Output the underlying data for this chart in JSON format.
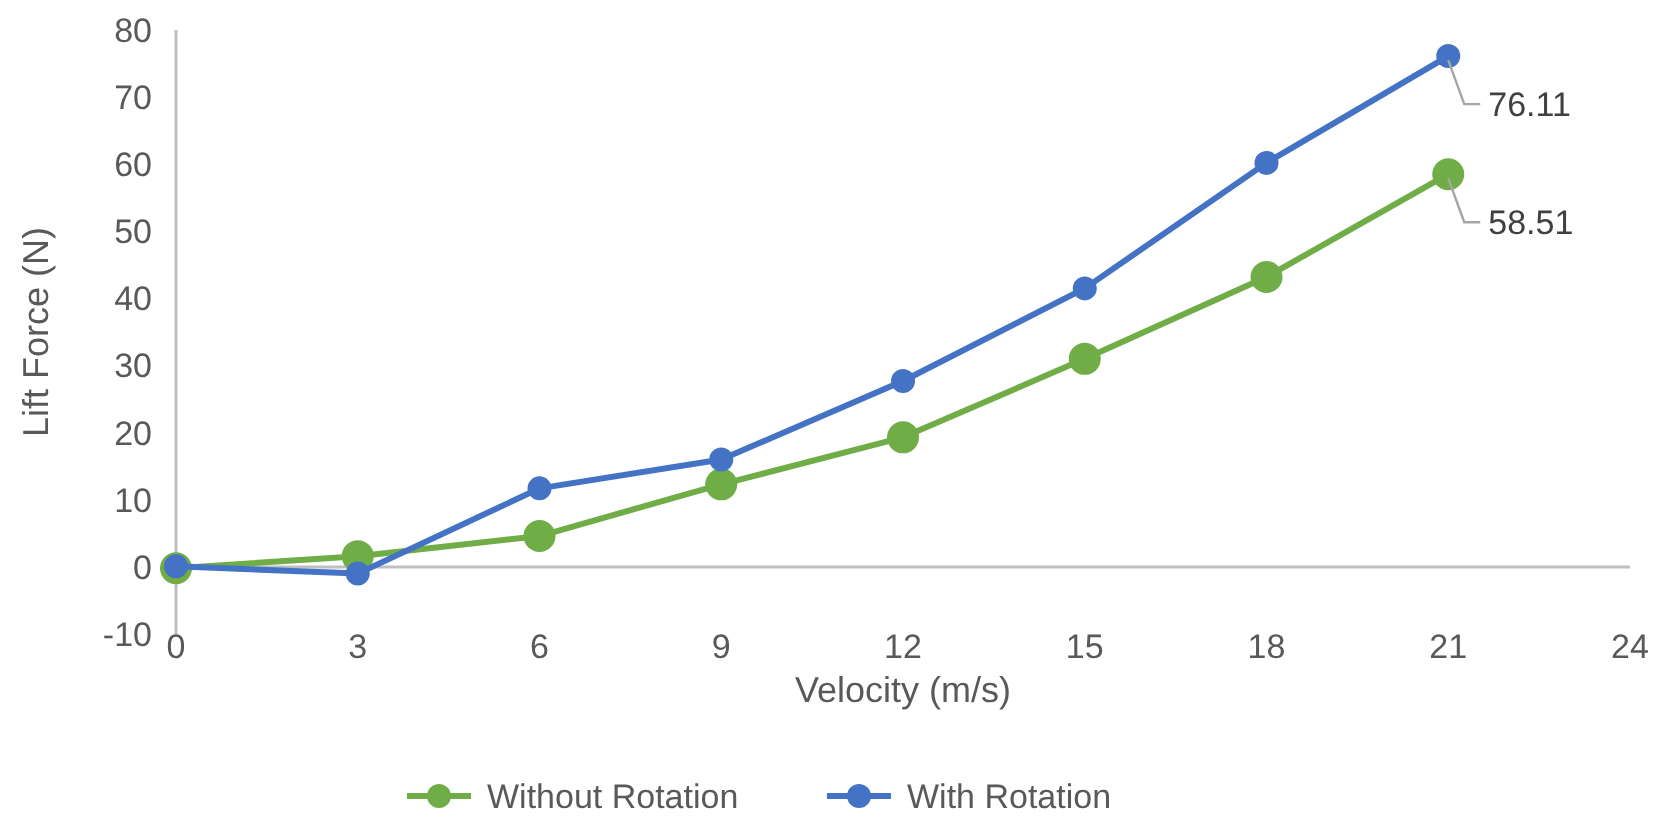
{
  "chart_data": {
    "type": "line",
    "xlabel": "Velocity (m/s)",
    "ylabel": "Lift Force (N)",
    "x": [
      0,
      3,
      6,
      9,
      12,
      15,
      18,
      21
    ],
    "xlim": [
      0,
      24
    ],
    "xticks": [
      0,
      3,
      6,
      9,
      12,
      15,
      18,
      21,
      24
    ],
    "ylim": [
      -10,
      80
    ],
    "yticks": [
      -10,
      0,
      10,
      20,
      30,
      40,
      50,
      60,
      70,
      80
    ],
    "marker": "circle",
    "legend": "bottom",
    "grid": false,
    "series": [
      {
        "name": "Without Rotation",
        "color": "#70ad47",
        "values": [
          -0.2,
          1.6,
          4.6,
          12.3,
          19.3,
          31.0,
          43.2,
          58.51
        ],
        "value_labels": [
          null,
          null,
          null,
          null,
          null,
          null,
          null,
          "58.51"
        ]
      },
      {
        "name": "With Rotation",
        "color": "#4472c4",
        "values": [
          0.1,
          -1.0,
          11.7,
          16.0,
          27.7,
          41.5,
          60.2,
          76.11
        ],
        "value_labels": [
          null,
          null,
          null,
          null,
          null,
          null,
          null,
          "76.11"
        ]
      }
    ]
  }
}
